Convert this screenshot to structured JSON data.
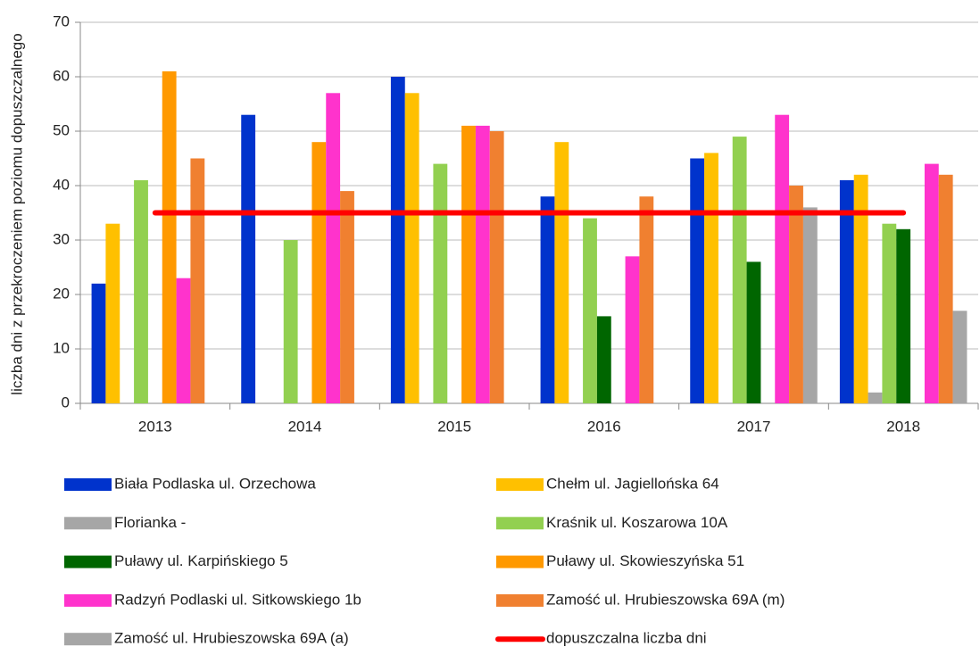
{
  "chart_data": {
    "type": "bar",
    "y_axis_label": "liczba dni z przekroczeniem poziomu dopuszczalnego",
    "categories": [
      "2013",
      "2014",
      "2015",
      "2016",
      "2017",
      "2018"
    ],
    "ylim": [
      0,
      70
    ],
    "yticks": [
      0,
      10,
      20,
      30,
      40,
      50,
      60,
      70
    ],
    "grid": true,
    "series": [
      {
        "name": "Biała Podlaska ul. Orzechowa",
        "color": "#0033cc",
        "values": [
          22,
          53,
          60,
          38,
          45,
          41
        ]
      },
      {
        "name": "Chełm ul. Jagiellońska 64",
        "color": "#ffc000",
        "values": [
          33,
          null,
          57,
          48,
          46,
          42
        ]
      },
      {
        "name": "Florianka -",
        "color": "#a6a6a6",
        "values": [
          null,
          null,
          null,
          null,
          null,
          2
        ]
      },
      {
        "name": "Kraśnik ul. Koszarowa 10A",
        "color": "#92d050",
        "values": [
          41,
          30,
          44,
          34,
          49,
          33
        ]
      },
      {
        "name": "Puławy ul. Karpińskiego 5",
        "color": "#006600",
        "values": [
          null,
          null,
          null,
          16,
          26,
          32
        ]
      },
      {
        "name": "Puławy ul. Skowieszyńska 51",
        "color": "#ff9900",
        "values": [
          61,
          48,
          51,
          null,
          null,
          null
        ]
      },
      {
        "name": "Radzyń Podlaski ul. Sitkowskiego 1b",
        "color": "#ff33cc",
        "values": [
          23,
          57,
          51,
          27,
          53,
          44
        ]
      },
      {
        "name": "Zamość ul. Hrubieszowska 69A (m)",
        "color": "#f08030",
        "values": [
          45,
          39,
          50,
          38,
          40,
          42
        ]
      },
      {
        "name": "Zamość ul. Hrubieszowska 69A (a)",
        "color": "#a6a6a6",
        "values": [
          null,
          null,
          null,
          null,
          36,
          17
        ]
      },
      {
        "name": "dopuszczalna liczba dni",
        "color": "#ff0000",
        "type": "line",
        "values": [
          35,
          35,
          35,
          35,
          35,
          35
        ]
      }
    ]
  }
}
